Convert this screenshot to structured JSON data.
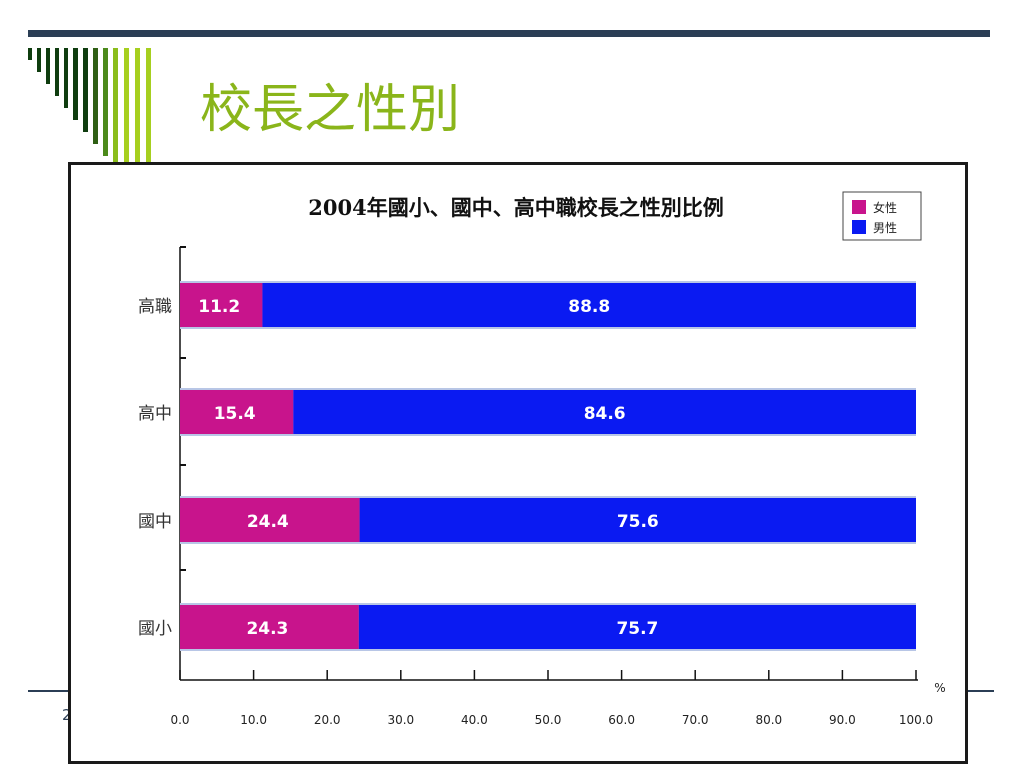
{
  "slide": {
    "title": "校長之性別",
    "page_number": "2"
  },
  "colors": {
    "top_rule": "#2b3e55",
    "title": "#8ab51a",
    "female": "#c8148c",
    "male": "#0a1af2",
    "decor_dark": "#0f3d0f",
    "decor_light": "#a6cf1f"
  },
  "chart_data": {
    "type": "bar",
    "orientation": "horizontal",
    "stacked": true,
    "title": "2004年國小、國中、高中職校長之性別比例",
    "categories": [
      "高職",
      "高中",
      "國中",
      "國小"
    ],
    "series": [
      {
        "name": "女性",
        "values": [
          11.2,
          15.4,
          24.4,
          24.3
        ],
        "color": "#c8148c"
      },
      {
        "name": "男性",
        "values": [
          88.8,
          84.6,
          75.6,
          75.7
        ],
        "color": "#0a1af2"
      }
    ],
    "xlim": [
      0,
      100
    ],
    "x_ticks": [
      "0.0",
      "10.0",
      "20.0",
      "30.0",
      "40.0",
      "50.0",
      "60.0",
      "70.0",
      "80.0",
      "90.0",
      "100.0"
    ],
    "x_unit": "%",
    "grid": false,
    "legend_position": "top-right",
    "data_labels": true
  }
}
